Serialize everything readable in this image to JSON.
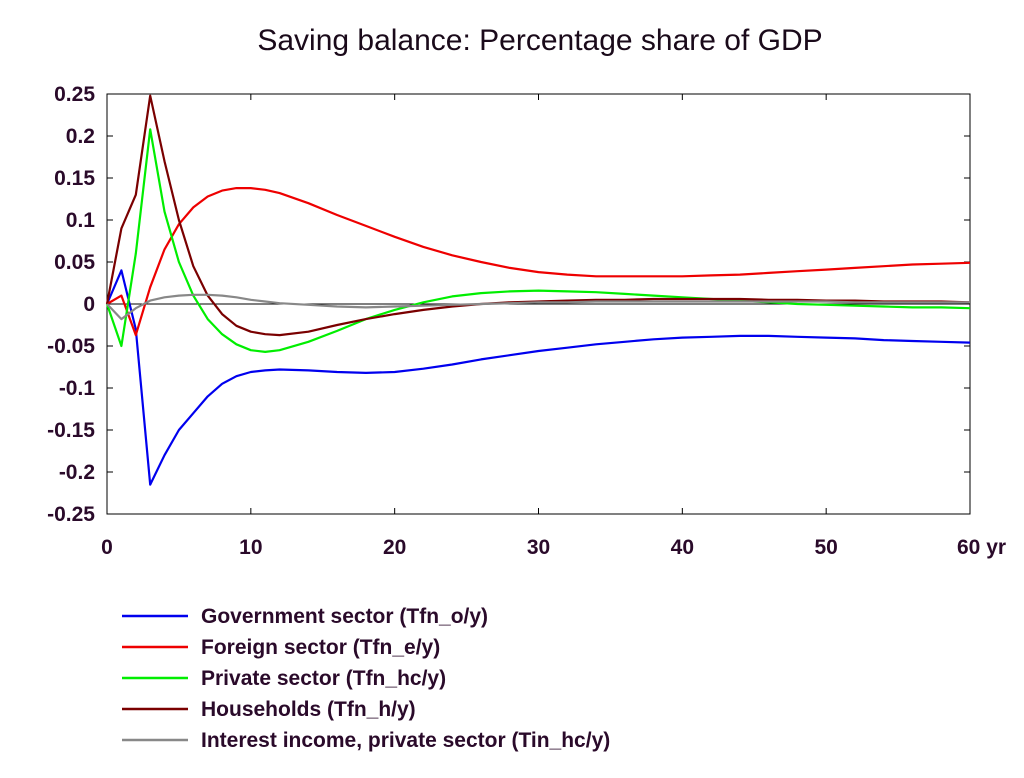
{
  "chart_data": {
    "type": "line",
    "title": "Saving balance: Percentage share of GDP",
    "xlabel": "",
    "ylabel": "",
    "x_unit_label": "yr",
    "xlim": [
      0,
      60
    ],
    "ylim": [
      -0.25,
      0.25
    ],
    "xticks": [
      0,
      10,
      20,
      30,
      40,
      50,
      60
    ],
    "xtick_labels": [
      "0",
      "10",
      "20",
      "30",
      "40",
      "50",
      "60 yr"
    ],
    "yticks": [
      0.25,
      0.2,
      0.15,
      0.1,
      0.05,
      0,
      -0.05,
      -0.1,
      -0.15,
      -0.2,
      -0.25
    ],
    "ytick_labels": [
      "0.25",
      "0.2",
      "0.15",
      "0.1",
      "0.05",
      "0",
      "-0.05",
      "-0.1",
      "-0.15",
      "-0.2",
      "-0.25"
    ],
    "zero_line": true,
    "grid": false,
    "legend_position": "bottom-left",
    "series": [
      {
        "name": "Government sector (Tfn_o/y)",
        "color": "#0000ee",
        "points": [
          [
            0,
            0
          ],
          [
            1,
            0.04
          ],
          [
            2,
            -0.03
          ],
          [
            3,
            -0.215
          ],
          [
            4,
            -0.18
          ],
          [
            5,
            -0.15
          ],
          [
            6,
            -0.13
          ],
          [
            7,
            -0.11
          ],
          [
            8,
            -0.095
          ],
          [
            9,
            -0.086
          ],
          [
            10,
            -0.081
          ],
          [
            11,
            -0.079
          ],
          [
            12,
            -0.078
          ],
          [
            14,
            -0.079
          ],
          [
            16,
            -0.081
          ],
          [
            18,
            -0.082
          ],
          [
            20,
            -0.081
          ],
          [
            22,
            -0.077
          ],
          [
            24,
            -0.072
          ],
          [
            26,
            -0.066
          ],
          [
            28,
            -0.061
          ],
          [
            30,
            -0.056
          ],
          [
            32,
            -0.052
          ],
          [
            34,
            -0.048
          ],
          [
            36,
            -0.045
          ],
          [
            38,
            -0.042
          ],
          [
            40,
            -0.04
          ],
          [
            42,
            -0.039
          ],
          [
            44,
            -0.038
          ],
          [
            46,
            -0.038
          ],
          [
            48,
            -0.039
          ],
          [
            50,
            -0.04
          ],
          [
            52,
            -0.041
          ],
          [
            54,
            -0.043
          ],
          [
            56,
            -0.044
          ],
          [
            58,
            -0.045
          ],
          [
            60,
            -0.046
          ]
        ]
      },
      {
        "name": "Foreign sector (Tfn_e/y)",
        "color": "#ee0000",
        "points": [
          [
            0,
            0
          ],
          [
            1,
            0.01
          ],
          [
            2,
            -0.037
          ],
          [
            3,
            0.02
          ],
          [
            4,
            0.065
          ],
          [
            5,
            0.095
          ],
          [
            6,
            0.115
          ],
          [
            7,
            0.128
          ],
          [
            8,
            0.135
          ],
          [
            9,
            0.138
          ],
          [
            10,
            0.138
          ],
          [
            11,
            0.136
          ],
          [
            12,
            0.132
          ],
          [
            14,
            0.12
          ],
          [
            16,
            0.106
          ],
          [
            18,
            0.093
          ],
          [
            20,
            0.08
          ],
          [
            22,
            0.068
          ],
          [
            24,
            0.058
          ],
          [
            26,
            0.05
          ],
          [
            28,
            0.043
          ],
          [
            30,
            0.038
          ],
          [
            32,
            0.035
          ],
          [
            34,
            0.033
          ],
          [
            36,
            0.033
          ],
          [
            38,
            0.033
          ],
          [
            40,
            0.033
          ],
          [
            42,
            0.034
          ],
          [
            44,
            0.035
          ],
          [
            46,
            0.037
          ],
          [
            48,
            0.039
          ],
          [
            50,
            0.041
          ],
          [
            52,
            0.043
          ],
          [
            54,
            0.045
          ],
          [
            56,
            0.047
          ],
          [
            58,
            0.048
          ],
          [
            60,
            0.049
          ]
        ]
      },
      {
        "name": "Private sector (Tfn_hc/y)",
        "color": "#00ee00",
        "points": [
          [
            0,
            0
          ],
          [
            1,
            -0.05
          ],
          [
            2,
            0.06
          ],
          [
            3,
            0.208
          ],
          [
            4,
            0.11
          ],
          [
            5,
            0.05
          ],
          [
            6,
            0.01
          ],
          [
            7,
            -0.018
          ],
          [
            8,
            -0.036
          ],
          [
            9,
            -0.048
          ],
          [
            10,
            -0.055
          ],
          [
            11,
            -0.057
          ],
          [
            12,
            -0.055
          ],
          [
            14,
            -0.045
          ],
          [
            16,
            -0.032
          ],
          [
            18,
            -0.018
          ],
          [
            20,
            -0.007
          ],
          [
            22,
            0.002
          ],
          [
            24,
            0.009
          ],
          [
            26,
            0.013
          ],
          [
            28,
            0.015
          ],
          [
            30,
            0.016
          ],
          [
            32,
            0.015
          ],
          [
            34,
            0.014
          ],
          [
            36,
            0.012
          ],
          [
            38,
            0.01
          ],
          [
            40,
            0.008
          ],
          [
            42,
            0.006
          ],
          [
            44,
            0.004
          ],
          [
            46,
            0.002
          ],
          [
            48,
            0.0
          ],
          [
            50,
            -0.001
          ],
          [
            52,
            -0.002
          ],
          [
            54,
            -0.003
          ],
          [
            56,
            -0.004
          ],
          [
            58,
            -0.004
          ],
          [
            60,
            -0.005
          ]
        ]
      },
      {
        "name": "Households (Tfn_h/y)",
        "color": "#7a0000",
        "points": [
          [
            0,
            0
          ],
          [
            1,
            0.09
          ],
          [
            2,
            0.13
          ],
          [
            3,
            0.248
          ],
          [
            4,
            0.17
          ],
          [
            5,
            0.1
          ],
          [
            6,
            0.045
          ],
          [
            7,
            0.01
          ],
          [
            8,
            -0.012
          ],
          [
            9,
            -0.026
          ],
          [
            10,
            -0.033
          ],
          [
            11,
            -0.036
          ],
          [
            12,
            -0.037
          ],
          [
            14,
            -0.033
          ],
          [
            16,
            -0.025
          ],
          [
            18,
            -0.018
          ],
          [
            20,
            -0.012
          ],
          [
            22,
            -0.007
          ],
          [
            24,
            -0.003
          ],
          [
            26,
            0.0
          ],
          [
            28,
            0.002
          ],
          [
            30,
            0.003
          ],
          [
            32,
            0.004
          ],
          [
            34,
            0.005
          ],
          [
            36,
            0.005
          ],
          [
            38,
            0.006
          ],
          [
            40,
            0.006
          ],
          [
            42,
            0.006
          ],
          [
            44,
            0.006
          ],
          [
            46,
            0.005
          ],
          [
            48,
            0.005
          ],
          [
            50,
            0.004
          ],
          [
            52,
            0.004
          ],
          [
            54,
            0.003
          ],
          [
            56,
            0.003
          ],
          [
            58,
            0.003
          ],
          [
            60,
            0.002
          ]
        ]
      },
      {
        "name": "Interest income, private sector (Tin_hc/y)",
        "color": "#888888",
        "points": [
          [
            0,
            0
          ],
          [
            1,
            -0.018
          ],
          [
            2,
            -0.005
          ],
          [
            3,
            0.004
          ],
          [
            4,
            0.008
          ],
          [
            5,
            0.01
          ],
          [
            6,
            0.011
          ],
          [
            7,
            0.011
          ],
          [
            8,
            0.01
          ],
          [
            9,
            0.008
          ],
          [
            10,
            0.005
          ],
          [
            11,
            0.003
          ],
          [
            12,
            0.001
          ],
          [
            14,
            -0.001
          ],
          [
            16,
            -0.003
          ],
          [
            18,
            -0.004
          ],
          [
            20,
            -0.003
          ],
          [
            22,
            -0.002
          ],
          [
            24,
            -0.001
          ],
          [
            26,
            0.0
          ],
          [
            28,
            0.001
          ],
          [
            30,
            0.002
          ],
          [
            32,
            0.002
          ],
          [
            34,
            0.003
          ],
          [
            36,
            0.003
          ],
          [
            38,
            0.003
          ],
          [
            40,
            0.003
          ],
          [
            42,
            0.003
          ],
          [
            44,
            0.003
          ],
          [
            46,
            0.003
          ],
          [
            48,
            0.003
          ],
          [
            50,
            0.003
          ],
          [
            52,
            0.002
          ],
          [
            54,
            0.002
          ],
          [
            56,
            0.002
          ],
          [
            58,
            0.002
          ],
          [
            60,
            0.002
          ]
        ]
      }
    ]
  }
}
